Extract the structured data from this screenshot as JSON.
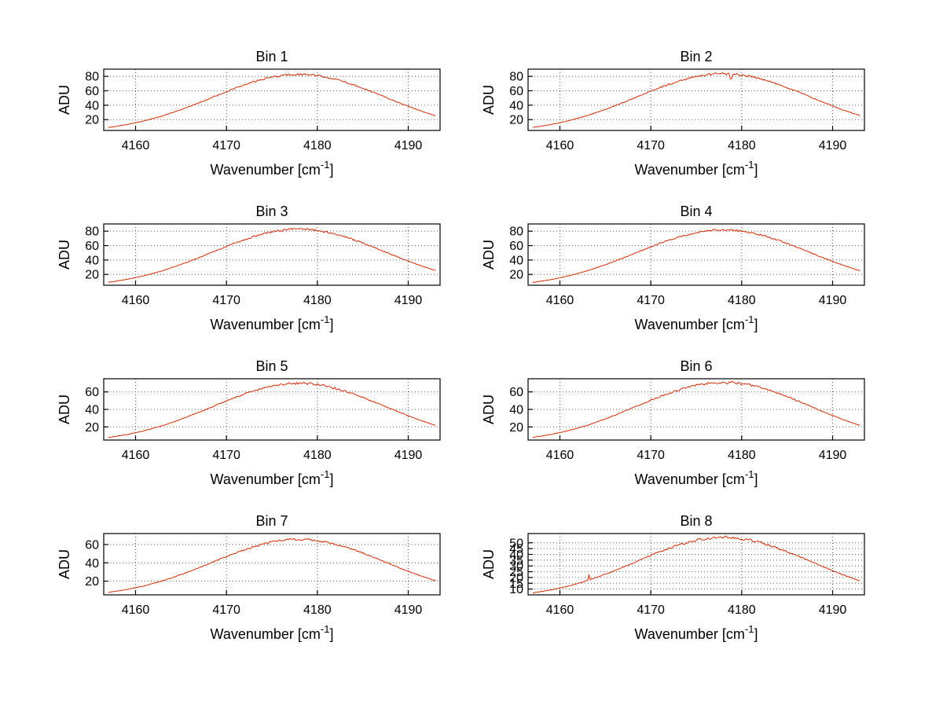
{
  "figure": {
    "background": "#ffffff",
    "curve_color": "#d42800",
    "grid_color": "#555555",
    "axis_color": "#000000",
    "text_color": "#000000",
    "grid": "on",
    "legend": "none"
  },
  "chart_data": [
    {
      "type": "line",
      "title": "Bin 1",
      "ylabel": "ADU",
      "xlabel_base": "Wavenumber [cm",
      "xlabel_sup": "-1",
      "xlabel_end": "]",
      "xlim": [
        4156.5,
        4193.5
      ],
      "ylim": [
        5,
        90
      ],
      "xticks": [
        4160,
        4170,
        4180,
        4190
      ],
      "yticks": [
        20,
        40,
        60,
        80
      ],
      "x": [
        4157,
        4159,
        4161,
        4163,
        4165,
        4167,
        4169,
        4171,
        4173,
        4175,
        4177,
        4179,
        4181,
        4183,
        4185,
        4187,
        4189,
        4191,
        4193
      ],
      "y": [
        9.0,
        13.0,
        18.3,
        25.3,
        33.8,
        43.4,
        53.7,
        63.7,
        72.5,
        79.1,
        82.6,
        82.6,
        79.1,
        72.5,
        63.7,
        53.7,
        43.4,
        33.8,
        25.3
      ],
      "noise": 1.2,
      "anomalies": []
    },
    {
      "type": "line",
      "title": "Bin 2",
      "ylabel": "ADU",
      "xlabel_base": "Wavenumber [cm",
      "xlabel_sup": "-1",
      "xlabel_end": "]",
      "xlim": [
        4156.5,
        4193.5
      ],
      "ylim": [
        5,
        90
      ],
      "xticks": [
        4160,
        4170,
        4180,
        4190
      ],
      "yticks": [
        20,
        40,
        60,
        80
      ],
      "x": [
        4157,
        4159,
        4161,
        4163,
        4165,
        4167,
        4169,
        4171,
        4173,
        4175,
        4177,
        4179,
        4181,
        4183,
        4185,
        4187,
        4189,
        4191,
        4193
      ],
      "y": [
        9.1,
        13.1,
        18.5,
        25.6,
        34.1,
        43.9,
        54.4,
        64.5,
        73.4,
        80.0,
        83.5,
        83.5,
        80.0,
        73.4,
        64.5,
        54.4,
        43.9,
        34.1,
        25.6
      ],
      "noise": 1.3,
      "anomalies": [
        {
          "x": 4178.8,
          "dy": -7
        }
      ]
    },
    {
      "type": "line",
      "title": "Bin 3",
      "ylabel": "ADU",
      "xlabel_base": "Wavenumber [cm",
      "xlabel_sup": "-1",
      "xlabel_end": "]",
      "xlim": [
        4156.5,
        4193.5
      ],
      "ylim": [
        5,
        90
      ],
      "xticks": [
        4160,
        4170,
        4180,
        4190
      ],
      "yticks": [
        20,
        40,
        60,
        80
      ],
      "x": [
        4157,
        4159,
        4161,
        4163,
        4165,
        4167,
        4169,
        4171,
        4173,
        4175,
        4177,
        4179,
        4181,
        4183,
        4185,
        4187,
        4189,
        4191,
        4193
      ],
      "y": [
        9.0,
        13.0,
        18.3,
        25.3,
        33.8,
        43.4,
        53.7,
        63.7,
        72.5,
        79.1,
        82.6,
        82.6,
        79.1,
        72.5,
        63.7,
        53.7,
        43.4,
        33.8,
        25.3
      ],
      "noise": 1.3,
      "anomalies": []
    },
    {
      "type": "line",
      "title": "Bin 4",
      "ylabel": "ADU",
      "xlabel_base": "Wavenumber [cm",
      "xlabel_sup": "-1",
      "xlabel_end": "]",
      "xlim": [
        4156.5,
        4193.5
      ],
      "ylim": [
        5,
        90
      ],
      "xticks": [
        4160,
        4170,
        4180,
        4190
      ],
      "yticks": [
        20,
        40,
        60,
        80
      ],
      "x": [
        4157,
        4159,
        4161,
        4163,
        4165,
        4167,
        4169,
        4171,
        4173,
        4175,
        4177,
        4179,
        4181,
        4183,
        4185,
        4187,
        4189,
        4191,
        4193
      ],
      "y": [
        8.9,
        12.8,
        18.1,
        25.0,
        33.4,
        42.9,
        53.1,
        63.0,
        71.7,
        78.1,
        81.6,
        81.6,
        78.1,
        71.7,
        63.0,
        53.1,
        42.9,
        33.4,
        25.0
      ],
      "noise": 1.2,
      "anomalies": []
    },
    {
      "type": "line",
      "title": "Bin 5",
      "ylabel": "ADU",
      "xlabel_base": "Wavenumber [cm",
      "xlabel_sup": "-1",
      "xlabel_end": "]",
      "xlim": [
        4156.5,
        4193.5
      ],
      "ylim": [
        5,
        75
      ],
      "xticks": [
        4160,
        4170,
        4180,
        4190
      ],
      "yticks": [
        20,
        40,
        60
      ],
      "x": [
        4157,
        4159,
        4161,
        4163,
        4165,
        4167,
        4169,
        4171,
        4173,
        4175,
        4177,
        4179,
        4181,
        4183,
        4185,
        4187,
        4189,
        4191,
        4193
      ],
      "y": [
        7.9,
        11.2,
        15.7,
        21.6,
        28.7,
        36.8,
        45.4,
        53.8,
        61.2,
        66.7,
        69.6,
        69.6,
        66.7,
        61.2,
        53.8,
        45.4,
        36.8,
        28.7,
        21.6
      ],
      "noise": 1.2,
      "anomalies": []
    },
    {
      "type": "line",
      "title": "Bin 6",
      "ylabel": "ADU",
      "xlabel_base": "Wavenumber [cm",
      "xlabel_sup": "-1",
      "xlabel_end": "]",
      "xlim": [
        4156.5,
        4193.5
      ],
      "ylim": [
        5,
        75
      ],
      "xticks": [
        4160,
        4170,
        4180,
        4190
      ],
      "yticks": [
        20,
        40,
        60
      ],
      "x": [
        4157,
        4159,
        4161,
        4163,
        4165,
        4167,
        4169,
        4171,
        4173,
        4175,
        4177,
        4179,
        4181,
        4183,
        4185,
        4187,
        4189,
        4191,
        4193
      ],
      "y": [
        8.0,
        11.3,
        15.9,
        21.8,
        29.0,
        37.3,
        46.1,
        54.6,
        62.1,
        67.7,
        70.6,
        70.6,
        67.7,
        62.1,
        54.6,
        46.1,
        37.3,
        29.0,
        21.8
      ],
      "noise": 1.2,
      "anomalies": []
    },
    {
      "type": "line",
      "title": "Bin 7",
      "ylabel": "ADU",
      "xlabel_base": "Wavenumber [cm",
      "xlabel_sup": "-1",
      "xlabel_end": "]",
      "xlim": [
        4156.5,
        4193.5
      ],
      "ylim": [
        5,
        72
      ],
      "xticks": [
        4160,
        4170,
        4180,
        4190
      ],
      "yticks": [
        20,
        40,
        60
      ],
      "x": [
        4157,
        4159,
        4161,
        4163,
        4165,
        4167,
        4169,
        4171,
        4173,
        4175,
        4177,
        4179,
        4181,
        4183,
        4185,
        4187,
        4189,
        4191,
        4193
      ],
      "y": [
        7.6,
        10.7,
        14.9,
        20.4,
        27.1,
        34.7,
        42.9,
        50.8,
        57.7,
        62.9,
        65.6,
        65.6,
        62.9,
        57.7,
        50.8,
        42.9,
        34.7,
        27.1,
        20.4
      ],
      "noise": 1.1,
      "anomalies": []
    },
    {
      "type": "line",
      "title": "Bin 8",
      "ylabel": "ADU",
      "xlabel_base": "Wavenumber [cm",
      "xlabel_sup": "-1",
      "xlabel_end": "]",
      "xlim": [
        4156.5,
        4193.5
      ],
      "ylim": [
        5,
        58
      ],
      "xticks": [
        4160,
        4170,
        4180,
        4190
      ],
      "yticks": [
        10,
        15,
        20,
        25,
        30,
        35,
        40,
        45,
        50
      ],
      "x": [
        4157,
        4159,
        4161,
        4163,
        4165,
        4167,
        4169,
        4171,
        4173,
        4175,
        4177,
        4179,
        4181,
        4183,
        4185,
        4187,
        4189,
        4191,
        4193
      ],
      "y": [
        6.6,
        9.2,
        12.7,
        17.2,
        22.8,
        29.1,
        35.8,
        42.4,
        48.1,
        52.4,
        54.7,
        54.7,
        52.4,
        48.1,
        42.4,
        35.8,
        29.1,
        22.8,
        17.2
      ],
      "noise": 1.1,
      "anomalies": [
        {
          "x": 4163.2,
          "dy": 4.5
        }
      ]
    }
  ]
}
